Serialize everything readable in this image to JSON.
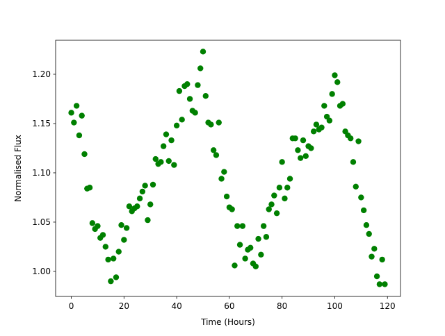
{
  "chart_data": {
    "type": "scatter",
    "xlabel": "Time (Hours)",
    "ylabel": "Normalised Flux",
    "color": "#008000",
    "x": [
      0,
      1,
      2,
      3,
      4,
      5,
      6,
      7,
      8,
      9,
      10,
      11,
      12,
      13,
      14,
      15,
      16,
      17,
      18,
      19,
      20,
      21,
      22,
      23,
      24,
      25,
      26,
      27,
      28,
      29,
      30,
      31,
      32,
      33,
      34,
      35,
      36,
      37,
      38,
      39,
      40,
      41,
      42,
      43,
      44,
      45,
      46,
      47,
      48,
      49,
      50,
      51,
      52,
      53,
      54,
      55,
      56,
      57,
      58,
      59,
      60,
      61,
      62,
      63,
      64,
      65,
      66,
      67,
      68,
      69,
      70,
      71,
      72,
      73,
      74,
      75,
      76,
      77,
      78,
      79,
      80,
      81,
      82,
      83,
      84,
      85,
      86,
      87,
      88,
      89,
      90,
      91,
      92,
      93,
      94,
      95,
      96,
      97,
      98,
      99,
      100,
      101,
      102,
      103,
      104,
      105,
      106,
      107,
      108,
      109,
      110,
      111,
      112,
      113,
      114,
      115,
      116,
      117,
      118,
      119
    ],
    "values": [
      1.161,
      1.151,
      1.168,
      1.138,
      1.158,
      1.119,
      1.084,
      1.085,
      1.049,
      1.043,
      1.046,
      1.034,
      1.037,
      1.025,
      1.012,
      0.99,
      1.013,
      0.994,
      1.02,
      1.047,
      1.032,
      1.044,
      1.066,
      1.061,
      1.064,
      1.066,
      1.074,
      1.081,
      1.087,
      1.052,
      1.068,
      1.088,
      1.114,
      1.109,
      1.111,
      1.127,
      1.139,
      1.112,
      1.133,
      1.108,
      1.148,
      1.183,
      1.154,
      1.188,
      1.19,
      1.175,
      1.163,
      1.161,
      1.189,
      1.206,
      1.223,
      1.178,
      1.151,
      1.149,
      1.123,
      1.118,
      1.151,
      1.094,
      1.101,
      1.076,
      1.065,
      1.063,
      1.006,
      1.046,
      1.027,
      1.046,
      1.013,
      1.022,
      1.024,
      1.008,
      1.005,
      1.033,
      1.017,
      1.046,
      1.035,
      1.063,
      1.068,
      1.077,
      1.059,
      1.085,
      1.111,
      1.074,
      1.085,
      1.094,
      1.135,
      1.135,
      1.123,
      1.115,
      1.133,
      1.117,
      1.127,
      1.125,
      1.142,
      1.149,
      1.144,
      1.146,
      1.168,
      1.157,
      1.153,
      1.18,
      1.199,
      1.192,
      1.168,
      1.17,
      1.142,
      1.138,
      1.135,
      1.111,
      1.086,
      1.132,
      1.075,
      1.062,
      1.047,
      1.038,
      1.015,
      1.023,
      0.995,
      0.987,
      1.012,
      0.987
    ],
    "xlim": [
      -5.95,
      124.95
    ],
    "ylim": [
      0.9746,
      1.2345
    ],
    "xticks": [
      0,
      20,
      40,
      60,
      80,
      100,
      120
    ],
    "yticks": [
      {
        "value": 1.0,
        "label": "1.00"
      },
      1.05,
      {
        "value": 1.1,
        "label": "1.10"
      },
      1.15,
      {
        "value": 1.2,
        "label": "1.20"
      }
    ]
  }
}
